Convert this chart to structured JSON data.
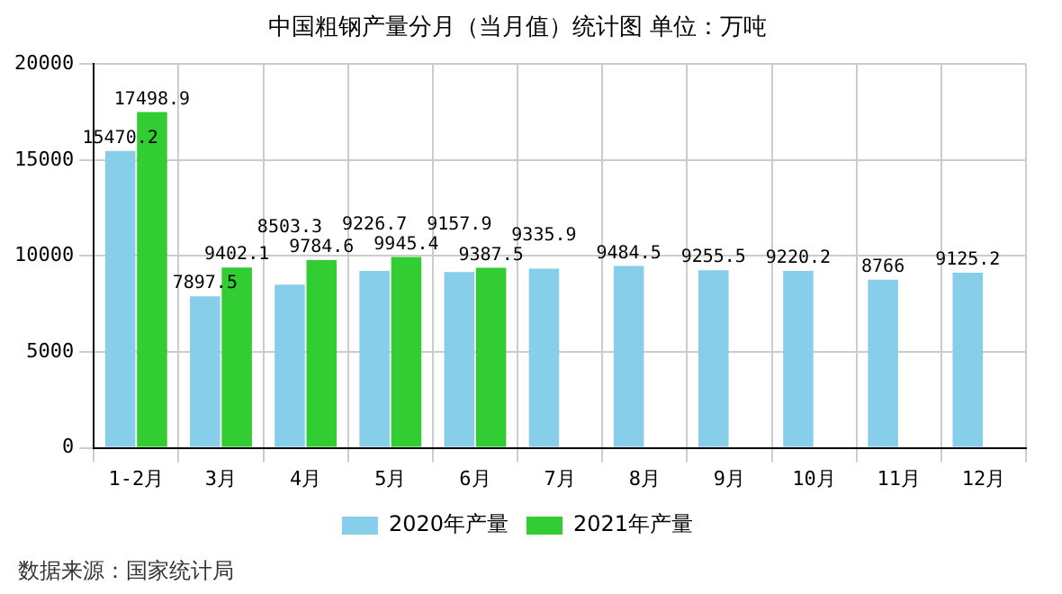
{
  "chart_data": {
    "type": "bar",
    "title": "中国粗钢产量分月（当月值）统计图 单位：万吨",
    "categories": [
      "1-2月",
      "3月",
      "4月",
      "5月",
      "6月",
      "7月",
      "8月",
      "9月",
      "10月",
      "11月",
      "12月"
    ],
    "series": [
      {
        "name": "2020年产量",
        "color": "#87ceeb",
        "values": [
          15470.2,
          7897.5,
          8503.3,
          9226.7,
          9157.9,
          9335.9,
          9484.5,
          9255.5,
          9220.2,
          8766,
          9125.2
        ]
      },
      {
        "name": "2021年产量",
        "color": "#32cd32",
        "values": [
          17498.9,
          9402.1,
          9784.6,
          9945.4,
          9387.5,
          null,
          null,
          null,
          null,
          null,
          null
        ]
      }
    ],
    "ylim": [
      0,
      20000
    ],
    "yticks": [
      0,
      5000,
      10000,
      15000,
      20000
    ],
    "grid": true,
    "legend": "bottom",
    "data_labels": true,
    "annotations": [
      "数据来源：国家统计局"
    ]
  }
}
